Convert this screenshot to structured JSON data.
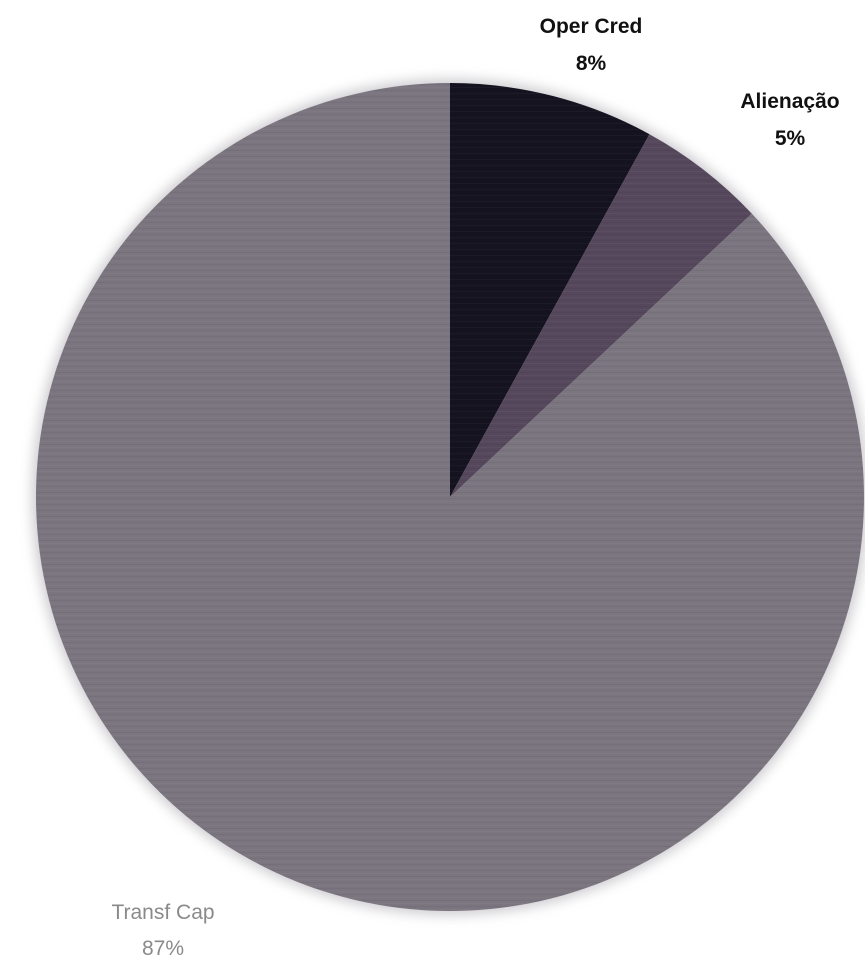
{
  "chart_data": {
    "type": "pie",
    "start_angle_deg": 0,
    "direction": "clockwise",
    "slices": [
      {
        "label": "Oper Cred",
        "value": 8,
        "percent_label": "8%",
        "color": "#151320"
      },
      {
        "label": "Alienação",
        "value": 5,
        "percent_label": "5%",
        "color": "#56485c"
      },
      {
        "label": "Transf Cap",
        "value": 87,
        "percent_label": "87%",
        "color": "#7b7580"
      }
    ],
    "title": "",
    "legend": "none",
    "labels": "outside"
  }
}
